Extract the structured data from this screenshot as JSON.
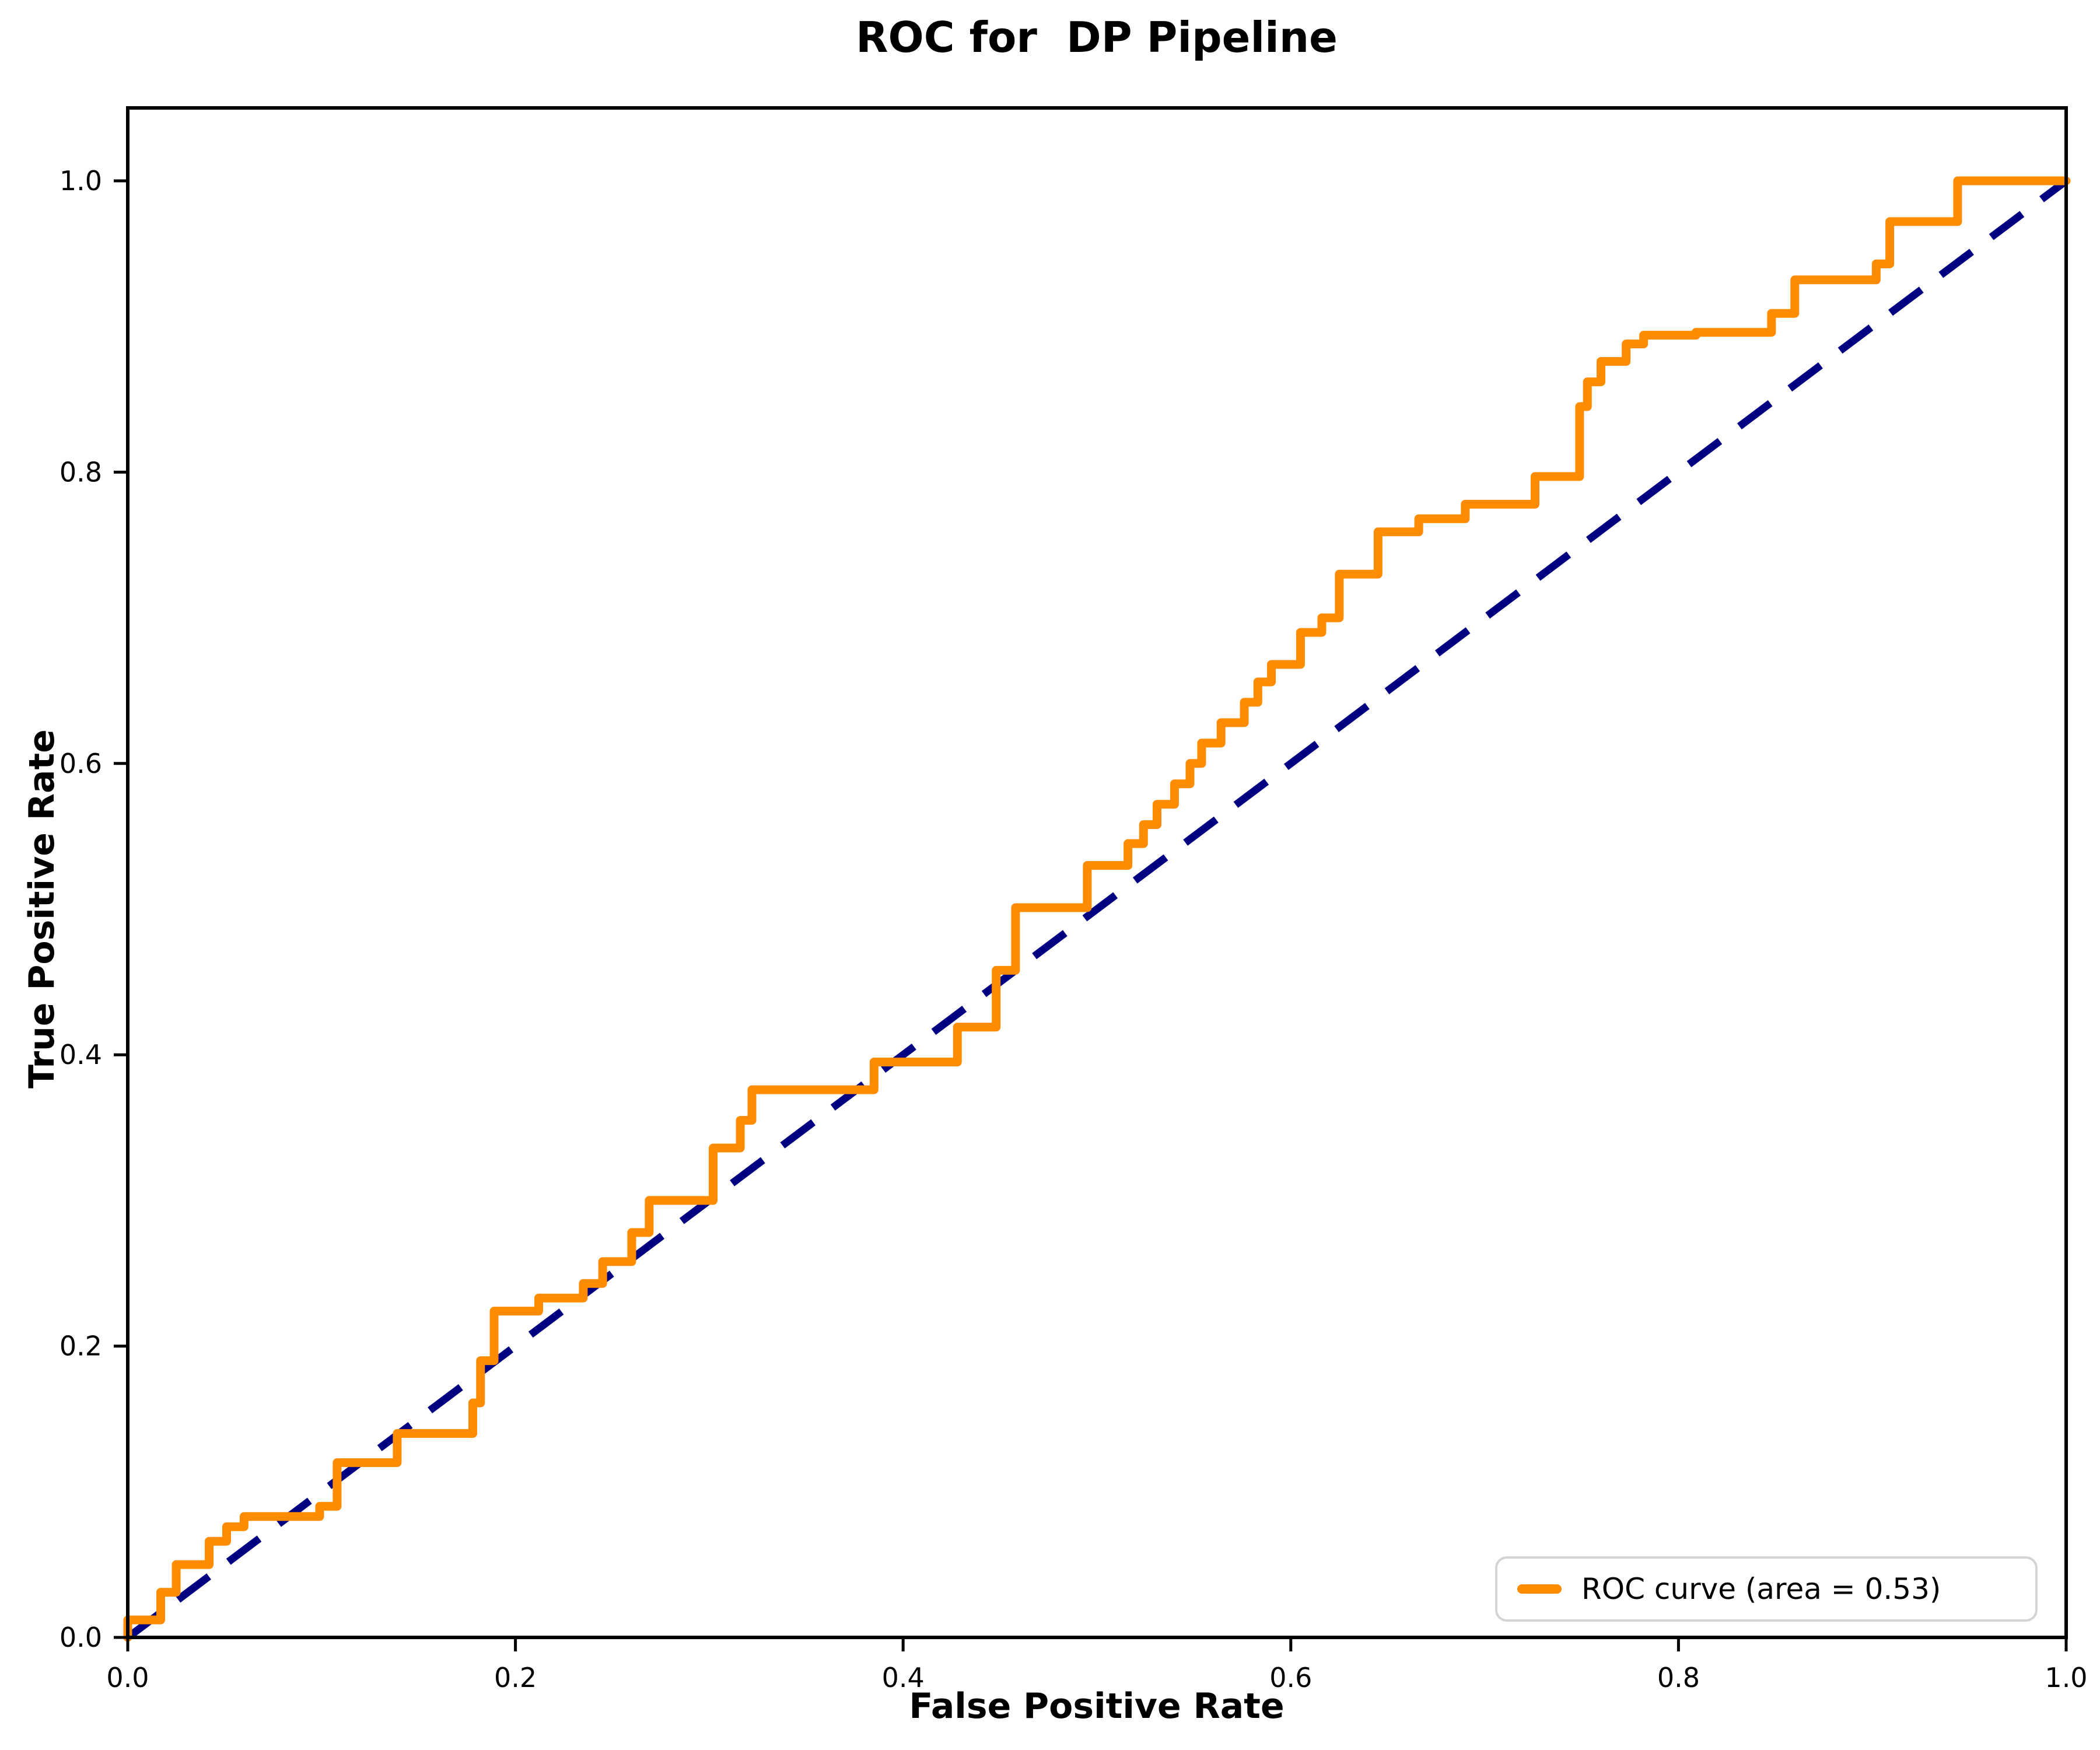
{
  "chart_data": {
    "type": "line",
    "title": "ROC for  DP Pipeline",
    "xlabel": "False Positive Rate",
    "ylabel": "True Positive Rate",
    "xlim": [
      0.0,
      1.0
    ],
    "ylim": [
      0.0,
      1.05
    ],
    "grid": false,
    "xticks": [
      "0.0",
      "0.2",
      "0.4",
      "0.6",
      "0.8",
      "1.0"
    ],
    "yticks": [
      "0.0",
      "0.2",
      "0.4",
      "0.6",
      "0.8",
      "1.0"
    ],
    "xtick_values": [
      0.0,
      0.2,
      0.4,
      0.6,
      0.8,
      1.0
    ],
    "ytick_values": [
      0.0,
      0.2,
      0.4,
      0.6,
      0.8,
      1.0
    ],
    "colors": {
      "roc_curve": "#FF8C00",
      "chance_line": "#000080",
      "axes": "#000000",
      "legend_edge": "#d4d4d4"
    },
    "legend": {
      "position": "lower right",
      "entries": [
        {
          "label": "ROC curve (area = 0.53)",
          "color": "#FF8C00"
        }
      ]
    },
    "series": [
      {
        "name": "ROC curve",
        "style": "step-post",
        "color": "#FF8C00",
        "area": 0.53,
        "points": [
          [
            0.0,
            0.012
          ],
          [
            0.017,
            0.031
          ],
          [
            0.025,
            0.05
          ],
          [
            0.042,
            0.066
          ],
          [
            0.051,
            0.076
          ],
          [
            0.06,
            0.083
          ],
          [
            0.099,
            0.09
          ],
          [
            0.108,
            0.12
          ],
          [
            0.139,
            0.14
          ],
          [
            0.178,
            0.161
          ],
          [
            0.182,
            0.19
          ],
          [
            0.189,
            0.224
          ],
          [
            0.212,
            0.233
          ],
          [
            0.235,
            0.243
          ],
          [
            0.245,
            0.258
          ],
          [
            0.26,
            0.278
          ],
          [
            0.269,
            0.3
          ],
          [
            0.302,
            0.336
          ],
          [
            0.316,
            0.355
          ],
          [
            0.322,
            0.376
          ],
          [
            0.385,
            0.395
          ],
          [
            0.428,
            0.419
          ],
          [
            0.448,
            0.458
          ],
          [
            0.458,
            0.501
          ],
          [
            0.495,
            0.53
          ],
          [
            0.516,
            0.545
          ],
          [
            0.524,
            0.558
          ],
          [
            0.531,
            0.572
          ],
          [
            0.54,
            0.586
          ],
          [
            0.548,
            0.6
          ],
          [
            0.554,
            0.614
          ],
          [
            0.564,
            0.628
          ],
          [
            0.576,
            0.642
          ],
          [
            0.583,
            0.656
          ],
          [
            0.59,
            0.668
          ],
          [
            0.605,
            0.69
          ],
          [
            0.616,
            0.7
          ],
          [
            0.625,
            0.73
          ],
          [
            0.645,
            0.759
          ],
          [
            0.666,
            0.768
          ],
          [
            0.69,
            0.778
          ],
          [
            0.726,
            0.797
          ],
          [
            0.749,
            0.845
          ],
          [
            0.753,
            0.862
          ],
          [
            0.76,
            0.876
          ],
          [
            0.773,
            0.888
          ],
          [
            0.782,
            0.894
          ],
          [
            0.809,
            0.896
          ],
          [
            0.848,
            0.909
          ],
          [
            0.86,
            0.932
          ],
          [
            0.902,
            0.943
          ],
          [
            0.909,
            0.972
          ],
          [
            0.944,
            1.0
          ],
          [
            1.0,
            1.0
          ]
        ]
      },
      {
        "name": "chance diagonal",
        "style": "dashed",
        "color": "#000080",
        "points": [
          [
            0.0,
            0.0
          ],
          [
            1.0,
            1.0
          ]
        ]
      }
    ]
  }
}
